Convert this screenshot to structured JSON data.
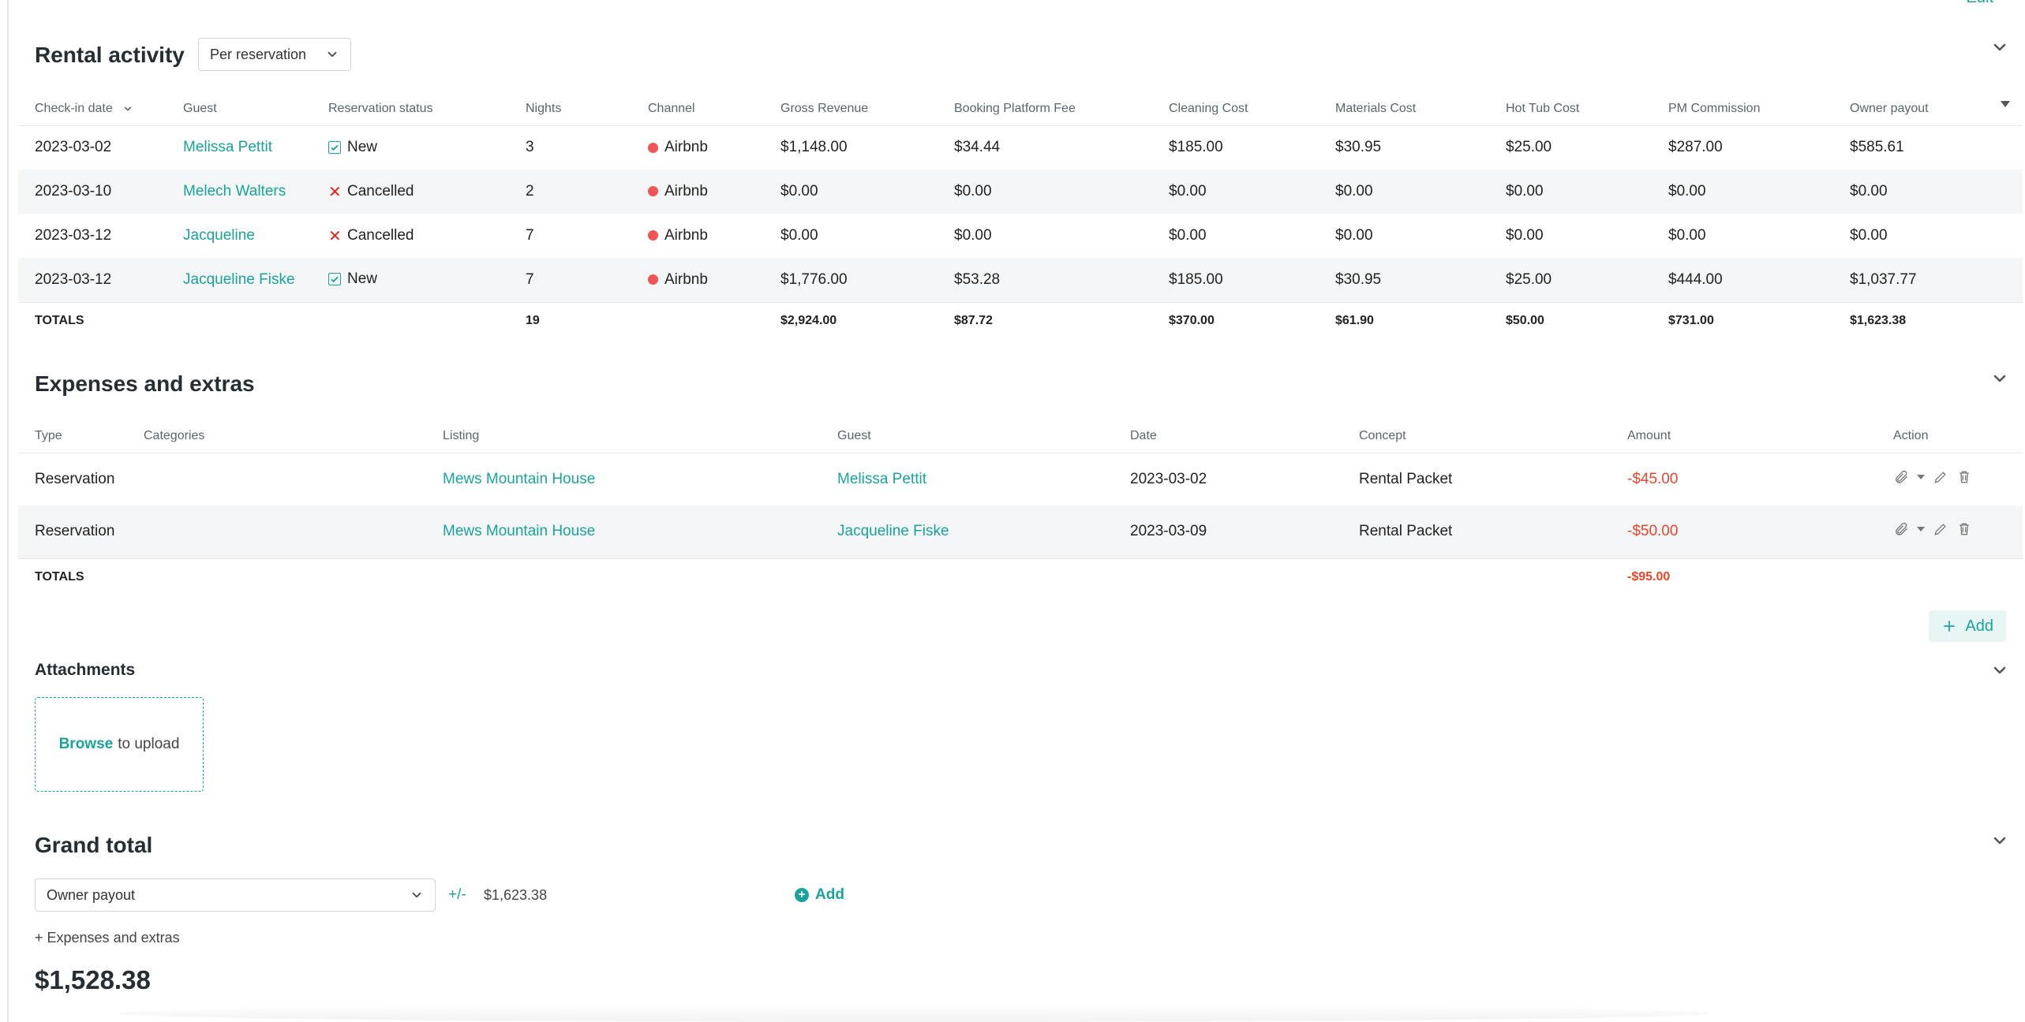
{
  "header": {
    "edit_label": "Edit"
  },
  "rental": {
    "title": "Rental activity",
    "view_select": "Per reservation",
    "columns": [
      "Check-in date",
      "Guest",
      "Reservation status",
      "Nights",
      "Channel",
      "Gross Revenue",
      "Booking Platform Fee",
      "Cleaning Cost",
      "Materials Cost",
      "Hot Tub Cost",
      "PM Commission",
      "Owner payout"
    ],
    "rows": [
      {
        "checkin": "2023-03-02",
        "guest": "Melissa Pettit",
        "status": "New",
        "nights": "3",
        "channel": "Airbnb",
        "gross": "$1,148.00",
        "platform_fee": "$34.44",
        "cleaning": "$185.00",
        "materials": "$30.95",
        "hottub": "$25.00",
        "commission": "$287.00",
        "payout": "$585.61"
      },
      {
        "checkin": "2023-03-10",
        "guest": "Melech Walters",
        "status": "Cancelled",
        "nights": "2",
        "channel": "Airbnb",
        "gross": "$0.00",
        "platform_fee": "$0.00",
        "cleaning": "$0.00",
        "materials": "$0.00",
        "hottub": "$0.00",
        "commission": "$0.00",
        "payout": "$0.00"
      },
      {
        "checkin": "2023-03-12",
        "guest": "Jacqueline",
        "status": "Cancelled",
        "nights": "7",
        "channel": "Airbnb",
        "gross": "$0.00",
        "platform_fee": "$0.00",
        "cleaning": "$0.00",
        "materials": "$0.00",
        "hottub": "$0.00",
        "commission": "$0.00",
        "payout": "$0.00"
      },
      {
        "checkin": "2023-03-12",
        "guest": "Jacqueline Fiske",
        "status": "New",
        "nights": "7",
        "channel": "Airbnb",
        "gross": "$1,776.00",
        "platform_fee": "$53.28",
        "cleaning": "$185.00",
        "materials": "$30.95",
        "hottub": "$25.00",
        "commission": "$444.00",
        "payout": "$1,037.77"
      }
    ],
    "totals": {
      "label": "TOTALS",
      "nights": "19",
      "gross": "$2,924.00",
      "platform_fee": "$87.72",
      "cleaning": "$370.00",
      "materials": "$61.90",
      "hottub": "$50.00",
      "commission": "$731.00",
      "payout": "$1,623.38"
    }
  },
  "expenses": {
    "title": "Expenses and extras",
    "columns": [
      "Type",
      "Categories",
      "Listing",
      "Guest",
      "Date",
      "Concept",
      "Amount",
      "Action"
    ],
    "rows": [
      {
        "type": "Reservation",
        "categories": "",
        "listing": "Mews Mountain House",
        "guest": "Melissa Pettit",
        "date": "2023-03-02",
        "concept": "Rental Packet",
        "amount": "-$45.00"
      },
      {
        "type": "Reservation",
        "categories": "",
        "listing": "Mews Mountain House",
        "guest": "Jacqueline Fiske",
        "date": "2023-03-09",
        "concept": "Rental Packet",
        "amount": "-$50.00"
      }
    ],
    "totals": {
      "label": "TOTALS",
      "amount": "-$95.00"
    },
    "add_label": "Add"
  },
  "attachments": {
    "title": "Attachments",
    "browse": "Browse",
    "upload_text": "to upload"
  },
  "grand_total": {
    "title": "Grand total",
    "select_value": "Owner payout",
    "plus_minus": "+/-",
    "value": "$1,623.38",
    "add_label": "Add",
    "extras_line": "+ Expenses and extras",
    "amount": "$1,528.38"
  },
  "colors": {
    "accent": "#1aa39a",
    "negative": "#e8452c",
    "channel_dot": "#f05454",
    "cancel": "#e0241b"
  }
}
